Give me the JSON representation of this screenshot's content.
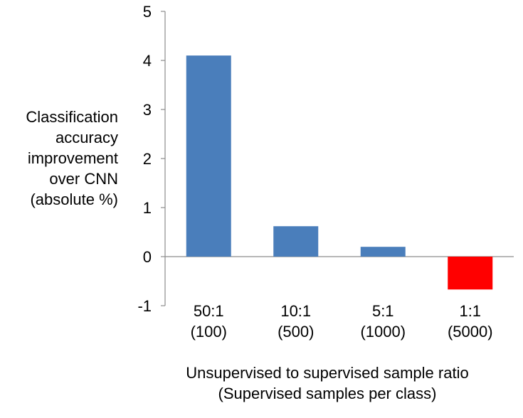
{
  "chart_data": {
    "type": "bar",
    "categories": [
      {
        "line1": "50:1",
        "line2": "(100)"
      },
      {
        "line1": "10:1",
        "line2": "(500)"
      },
      {
        "line1": "5:1",
        "line2": "(1000)"
      },
      {
        "line1": "1:1",
        "line2": "(5000)"
      }
    ],
    "values": [
      4.1,
      0.62,
      0.2,
      -0.67
    ],
    "bar_colors": [
      "#4a7ebb",
      "#4a7ebb",
      "#4a7ebb",
      "#ff0000"
    ],
    "ylim": [
      -1,
      5
    ],
    "yticks": [
      "-1",
      "0",
      "1",
      "2",
      "3",
      "4",
      "5"
    ],
    "ylabel_lines": [
      "Classification",
      "accuracy",
      "improvement",
      "over CNN",
      "(absolute %)"
    ],
    "xlabel_lines": [
      "Unsupervised to supervised sample ratio",
      "(Supervised samples per class)"
    ],
    "grid": false,
    "legend": "none"
  }
}
